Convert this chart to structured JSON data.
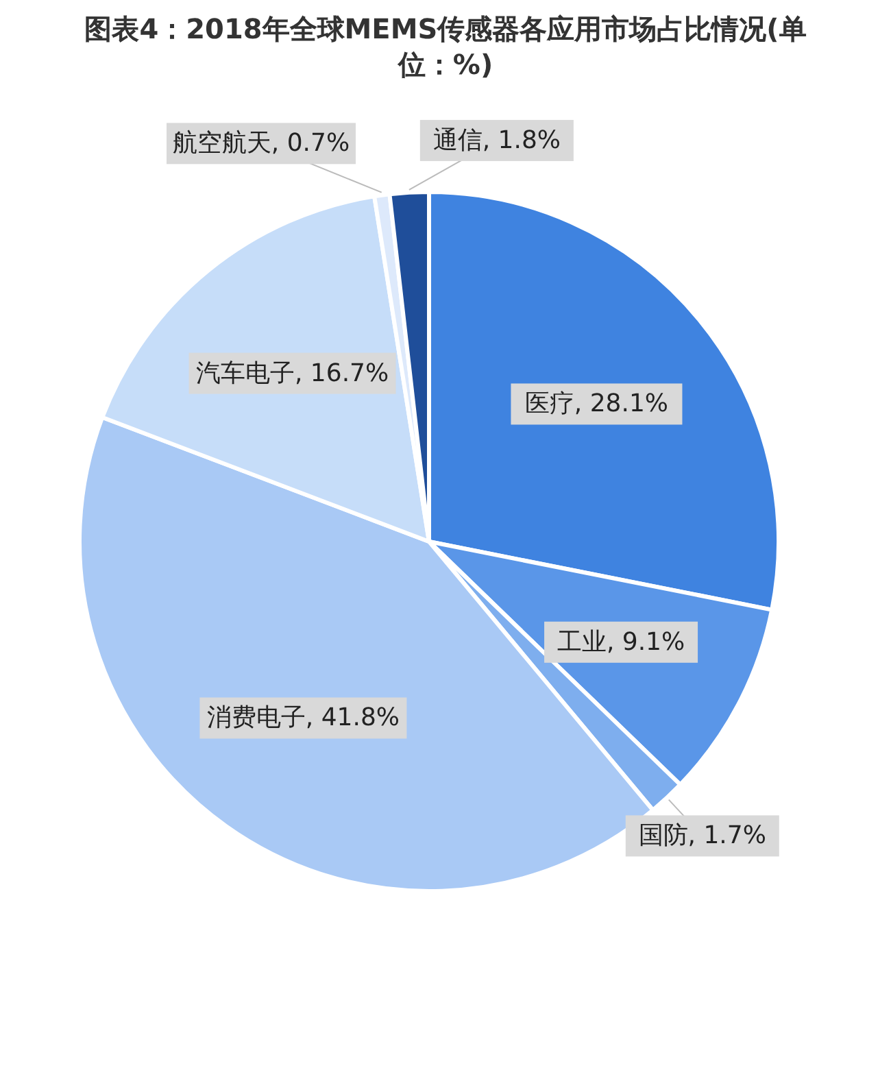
{
  "chart_data": {
    "type": "pie",
    "title": "图表4：2018年全球MEMS传感器各应用市场占比情况(单位：%)",
    "categories": [
      "医疗",
      "工业",
      "国防",
      "消费电子",
      "汽车电子",
      "航空航天",
      "通信"
    ],
    "values": [
      28.1,
      9.1,
      1.7,
      41.8,
      16.7,
      0.7,
      1.8
    ],
    "value_labels": [
      "28.1%",
      "9.1%",
      "1.7%",
      "41.8%",
      "16.7%",
      "0.7%",
      "1.8%"
    ],
    "colors": [
      "#3f83e0",
      "#5a96e8",
      "#7eaeee",
      "#a9c9f5",
      "#c6ddf9",
      "#dde9fb",
      "#1f4e9a"
    ],
    "legend": false
  }
}
